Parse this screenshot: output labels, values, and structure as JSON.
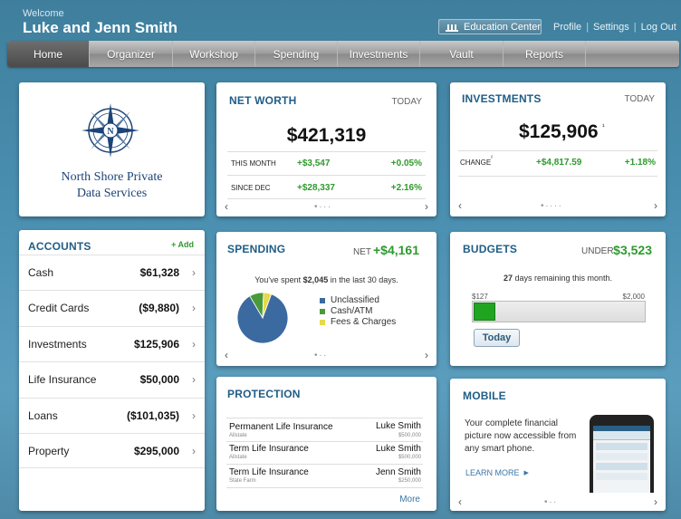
{
  "header": {
    "welcome": "Welcome",
    "user_name": "Luke and Jenn Smith",
    "education_center": "Education Center",
    "links": [
      "Profile",
      "Settings",
      "Log Out"
    ]
  },
  "nav": {
    "items": [
      "Home",
      "Organizer",
      "Workshop",
      "Spending",
      "Investments",
      "Vault",
      "Reports"
    ],
    "active": "Home"
  },
  "logo": {
    "line1": "North Shore Private",
    "line2": "Data Services",
    "mark": "N"
  },
  "net_worth": {
    "title": "NET WORTH",
    "period": "TODAY",
    "value": "$421,319",
    "rows": [
      {
        "label": "THIS MONTH",
        "amount": "+$3,547",
        "percent": "+0.05%"
      },
      {
        "label": "SINCE DEC",
        "amount": "+$28,337",
        "percent": "+2.16%"
      }
    ]
  },
  "investments": {
    "title": "INVESTMENTS",
    "period": "TODAY",
    "value": "$125,906",
    "value_mark": "¹",
    "change_label": "CHANGE",
    "change_mark": "²",
    "change_amount": "+$4,817.59",
    "change_percent": "+1.18%"
  },
  "accounts": {
    "title": "ACCOUNTS",
    "add_label": "+ Add",
    "items": [
      {
        "name": "Cash",
        "value": "$61,328"
      },
      {
        "name": "Credit Cards",
        "value": "($9,880)"
      },
      {
        "name": "Investments",
        "value": "$125,906"
      },
      {
        "name": "Life Insurance",
        "value": "$50,000"
      },
      {
        "name": "Loans",
        "value": "($101,035)"
      },
      {
        "name": "Property",
        "value": "$295,000"
      }
    ]
  },
  "spending": {
    "title": "SPENDING",
    "net_label": "NET",
    "net_value": "+$4,161",
    "summary_pre": "You've spent",
    "summary_amount": "$2,045",
    "summary_post": "in the last 30 days.",
    "legend": [
      {
        "label": "Unclassified",
        "color": "#3a6a9f",
        "fraction": 0.86
      },
      {
        "label": "Cash/ATM",
        "color": "#4a9a3a",
        "fraction": 0.09
      },
      {
        "label": "Fees & Charges",
        "color": "#e8d84a",
        "fraction": 0.05
      }
    ]
  },
  "budgets": {
    "title": "BUDGETS",
    "under_label": "UNDER",
    "under_value": "$3,523",
    "days_num": "27",
    "days_text": "days remaining this month.",
    "min_label": "$127",
    "max_label": "$2,000",
    "progress_fraction": 0.13,
    "today_label": "Today"
  },
  "protection": {
    "title": "PROTECTION",
    "items": [
      {
        "name": "Permanent Life Insurance",
        "carrier": "Allstate",
        "holder": "Luke Smith",
        "amount": "$500,000"
      },
      {
        "name": "Term Life Insurance",
        "carrier": "Allstate",
        "holder": "Luke Smith",
        "amount": "$500,000"
      },
      {
        "name": "Term Life Insurance",
        "carrier": "State Farm",
        "holder": "Jenn Smith",
        "amount": "$250,000"
      }
    ],
    "more_label": "More"
  },
  "mobile": {
    "title": "MOBILE",
    "line1": "Your complete financial",
    "line2": "picture now accessible from",
    "line3": "any smart phone.",
    "learn_more": "LEARN MORE"
  },
  "colors": {
    "accent": "#1f5d86",
    "positive": "#2e9a2e"
  }
}
